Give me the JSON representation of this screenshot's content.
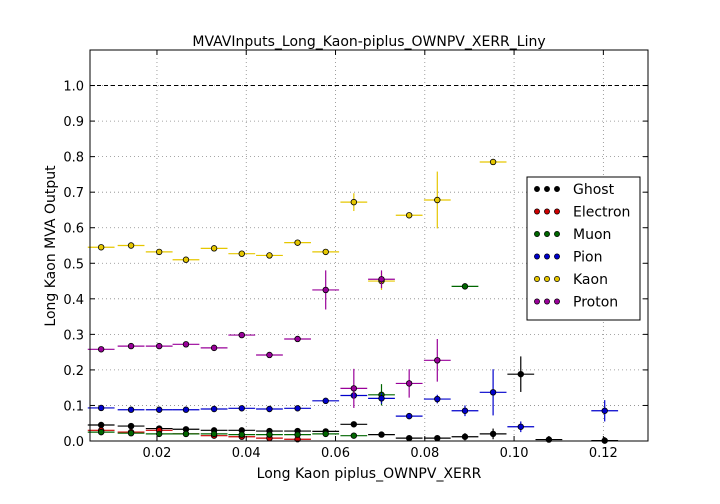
{
  "chart_data": {
    "type": "scatter",
    "title": "MVAVInputs_Long_Kaon-piplus_OWNPV_XERR_Liny",
    "xlabel": "Long Kaon piplus_OWNPV_XERR",
    "ylabel": "Long Kaon MVA Output",
    "xlim": [
      0.005,
      0.13
    ],
    "ylim": [
      0.0,
      1.1
    ],
    "xticks": [
      0.02,
      0.04,
      0.06,
      0.08,
      0.1,
      0.12
    ],
    "xtick_labels": [
      "0.02",
      "0.04",
      "0.06",
      "0.08",
      "0.10",
      "0.12"
    ],
    "yticks": [
      0.0,
      0.1,
      0.2,
      0.3,
      0.4,
      0.5,
      0.6,
      0.7,
      0.8,
      0.9,
      1.0
    ],
    "ytick_labels": [
      "0.0",
      "0.1",
      "0.2",
      "0.3",
      "0.4",
      "0.5",
      "0.6",
      "0.7",
      "0.8",
      "0.9",
      "1.0"
    ],
    "grid": true,
    "legend_position": "right",
    "reference_line": {
      "y": 1.0,
      "style": "dashed"
    },
    "series": [
      {
        "name": "Ghost",
        "color": "#000000",
        "x": [
          0.0075,
          0.0142,
          0.0205,
          0.0265,
          0.0328,
          0.039,
          0.0452,
          0.0515,
          0.0578,
          0.0641,
          0.0703,
          0.0765,
          0.0828,
          0.089,
          0.0953,
          0.1015,
          0.1078,
          0.1203
        ],
        "y": [
          0.045,
          0.042,
          0.035,
          0.033,
          0.03,
          0.03,
          0.028,
          0.028,
          0.027,
          0.047,
          0.018,
          0.008,
          0.008,
          0.012,
          0.02,
          0.188,
          0.004,
          0.001
        ],
        "yerr": [
          0.003,
          0.003,
          0.003,
          0.003,
          0.003,
          0.003,
          0.003,
          0.004,
          0.004,
          0.005,
          0.006,
          0.006,
          0.007,
          0.01,
          0.015,
          0.05,
          0.01,
          0.01
        ],
        "xerr": 0.003
      },
      {
        "name": "Electron",
        "color": "#cc0000",
        "x": [
          0.0075,
          0.0142,
          0.0205,
          0.0265,
          0.0328,
          0.039,
          0.0452,
          0.0515
        ],
        "y": [
          0.03,
          0.025,
          0.03,
          0.02,
          0.015,
          0.012,
          0.008,
          0.005
        ],
        "yerr": [
          0.004,
          0.004,
          0.004,
          0.004,
          0.004,
          0.004,
          0.004,
          0.004
        ],
        "xerr": 0.003
      },
      {
        "name": "Muon",
        "color": "#006600",
        "x": [
          0.0075,
          0.0142,
          0.0205,
          0.0265,
          0.0328,
          0.039,
          0.0452,
          0.0515,
          0.0578,
          0.0641,
          0.0703,
          0.089
        ],
        "y": [
          0.025,
          0.022,
          0.02,
          0.02,
          0.02,
          0.018,
          0.018,
          0.018,
          0.02,
          0.015,
          0.13,
          0.435
        ],
        "yerr": [
          0.004,
          0.004,
          0.004,
          0.004,
          0.004,
          0.004,
          0.004,
          0.004,
          0.005,
          0.006,
          0.03,
          0.006
        ],
        "xerr": 0.003
      },
      {
        "name": "Pion",
        "color": "#0000cc",
        "x": [
          0.0075,
          0.0142,
          0.0205,
          0.0265,
          0.0328,
          0.039,
          0.0452,
          0.0515,
          0.0578,
          0.0641,
          0.0703,
          0.0765,
          0.0828,
          0.089,
          0.0953,
          0.1015,
          0.1203
        ],
        "y": [
          0.093,
          0.088,
          0.088,
          0.088,
          0.09,
          0.092,
          0.09,
          0.092,
          0.113,
          0.128,
          0.12,
          0.07,
          0.118,
          0.085,
          0.137,
          0.04,
          0.085
        ],
        "yerr": [
          0.003,
          0.003,
          0.003,
          0.003,
          0.003,
          0.003,
          0.003,
          0.004,
          0.005,
          0.01,
          0.015,
          0.008,
          0.012,
          0.015,
          0.065,
          0.015,
          0.03
        ],
        "xerr": 0.003
      },
      {
        "name": "Kaon",
        "color": "#e6c700",
        "x": [
          0.0075,
          0.0142,
          0.0205,
          0.0265,
          0.0328,
          0.039,
          0.0452,
          0.0515,
          0.0578,
          0.0641,
          0.0703,
          0.0765,
          0.0828,
          0.0953
        ],
        "y": [
          0.545,
          0.55,
          0.532,
          0.51,
          0.542,
          0.527,
          0.522,
          0.558,
          0.532,
          0.672,
          0.45,
          0.635,
          0.678,
          0.785
        ],
        "yerr": [
          0.004,
          0.004,
          0.004,
          0.004,
          0.004,
          0.004,
          0.004,
          0.004,
          0.005,
          0.025,
          0.025,
          0.006,
          0.08,
          0.004
        ],
        "xerr": 0.003
      },
      {
        "name": "Proton",
        "color": "#990099",
        "x": [
          0.0075,
          0.0142,
          0.0205,
          0.0265,
          0.0328,
          0.039,
          0.0452,
          0.0515,
          0.0578,
          0.0641,
          0.0703,
          0.0765,
          0.0828
        ],
        "y": [
          0.258,
          0.267,
          0.267,
          0.272,
          0.262,
          0.298,
          0.242,
          0.287,
          0.425,
          0.148,
          0.455,
          0.162,
          0.227
        ],
        "yerr": [
          0.004,
          0.004,
          0.004,
          0.004,
          0.004,
          0.004,
          0.005,
          0.005,
          0.055,
          0.055,
          0.025,
          0.04,
          0.06
        ],
        "xerr": 0.003
      }
    ]
  }
}
